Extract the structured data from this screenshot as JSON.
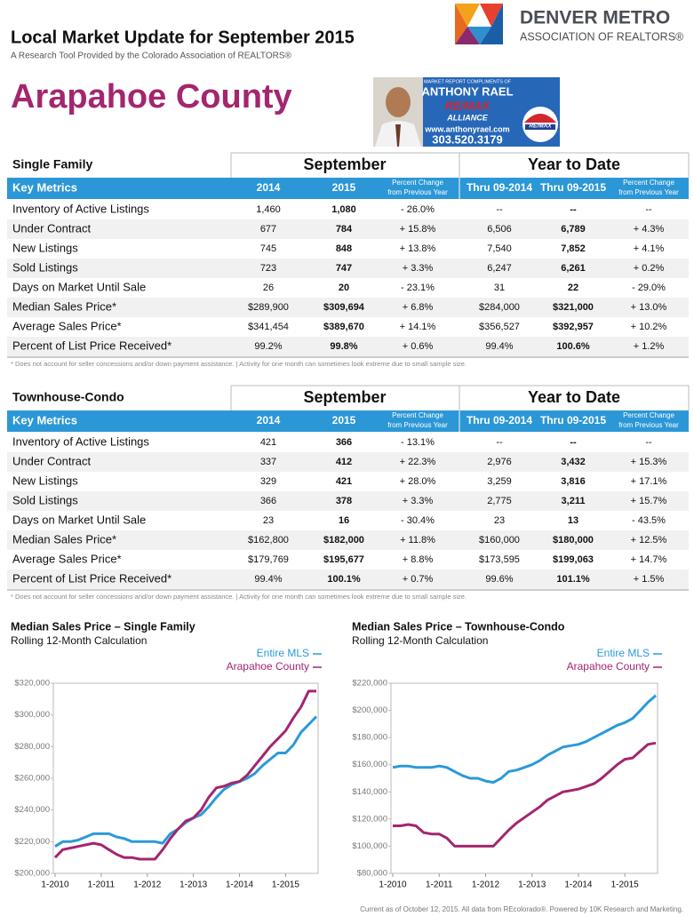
{
  "header": {
    "title": "Local Market Update for September 2015",
    "subtitle": "A Research Tool Provided by the Colorado Association of REALTORS®"
  },
  "logo": {
    "name": "DENVER METRO",
    "tagline": "ASSOCIATION OF REALTORS®"
  },
  "county": "Arapahoe County",
  "ad": {
    "intro": "MARKET REPORT COMPLIMENTS OF",
    "agent": "ANTHONY RAEL",
    "brand": "RE/MAX",
    "office": "ALLIANCE",
    "website": "www.anthonyrael.com",
    "phone": "303.520.3179",
    "balloon": "RE/MAX"
  },
  "tables": [
    {
      "section": "Single Family",
      "groups": [
        "September",
        "Year to Date"
      ],
      "columns": [
        [
          "Key Metrics"
        ],
        [
          "2014"
        ],
        [
          "2015"
        ],
        [
          "Percent Change",
          "from Previous Year"
        ],
        [
          "Thru 09-2014"
        ],
        [
          "Thru 09-2015"
        ],
        [
          "Percent Change",
          "from Previous Year"
        ]
      ],
      "rows": [
        [
          "Inventory of Active Listings",
          "1,460",
          "1,080",
          "- 26.0%",
          "--",
          "--",
          "--"
        ],
        [
          "Under Contract",
          "677",
          "784",
          "+ 15.8%",
          "6,506",
          "6,789",
          "+ 4.3%"
        ],
        [
          "New Listings",
          "745",
          "848",
          "+ 13.8%",
          "7,540",
          "7,852",
          "+ 4.1%"
        ],
        [
          "Sold Listings",
          "723",
          "747",
          "+ 3.3%",
          "6,247",
          "6,261",
          "+ 0.2%"
        ],
        [
          "Days on Market Until Sale",
          "26",
          "20",
          "- 23.1%",
          "31",
          "22",
          "- 29.0%"
        ],
        [
          "Median Sales Price*",
          "$289,900",
          "$309,694",
          "+ 6.8%",
          "$284,000",
          "$321,000",
          "+ 13.0%"
        ],
        [
          "Average Sales Price*",
          "$341,454",
          "$389,670",
          "+ 14.1%",
          "$356,527",
          "$392,957",
          "+ 10.2%"
        ],
        [
          "Percent of List Price Received*",
          "99.2%",
          "99.8%",
          "+ 0.6%",
          "99.4%",
          "100.6%",
          "+ 1.2%"
        ]
      ],
      "footnote": "* Does not account for seller concessions and/or down payment assistance.  |  Activity for one month can sometimes look extreme due to small sample size."
    },
    {
      "section": "Townhouse-Condo",
      "groups": [
        "September",
        "Year to Date"
      ],
      "columns": [
        [
          "Key Metrics"
        ],
        [
          "2014"
        ],
        [
          "2015"
        ],
        [
          "Percent Change",
          "from Previous Year"
        ],
        [
          "Thru 09-2014"
        ],
        [
          "Thru 09-2015"
        ],
        [
          "Percent Change",
          "from Previous Year"
        ]
      ],
      "rows": [
        [
          "Inventory of Active Listings",
          "421",
          "366",
          "- 13.1%",
          "--",
          "--",
          "--"
        ],
        [
          "Under Contract",
          "337",
          "412",
          "+ 22.3%",
          "2,976",
          "3,432",
          "+ 15.3%"
        ],
        [
          "New Listings",
          "329",
          "421",
          "+ 28.0%",
          "3,259",
          "3,816",
          "+ 17.1%"
        ],
        [
          "Sold Listings",
          "366",
          "378",
          "+ 3.3%",
          "2,775",
          "3,211",
          "+ 15.7%"
        ],
        [
          "Days on Market Until Sale",
          "23",
          "16",
          "- 30.4%",
          "23",
          "13",
          "- 43.5%"
        ],
        [
          "Median Sales Price*",
          "$162,800",
          "$182,000",
          "+ 11.8%",
          "$160,000",
          "$180,000",
          "+ 12.5%"
        ],
        [
          "Average Sales Price*",
          "$179,769",
          "$195,677",
          "+ 8.8%",
          "$173,595",
          "$199,063",
          "+ 14.7%"
        ],
        [
          "Percent of List Price Received*",
          "99.4%",
          "100.1%",
          "+ 0.7%",
          "99.6%",
          "101.1%",
          "+ 1.5%"
        ]
      ],
      "footnote": "* Does not account for seller concessions and/or down payment assistance.  |  Activity for one month can sometimes look extreme due to small sample size."
    }
  ],
  "chart_data": [
    {
      "type": "line",
      "title": "Median Sales Price – Single Family",
      "subtitle": "Rolling 12-Month Calculation",
      "categories": [
        "1-2010",
        null,
        null,
        null,
        null,
        null,
        "1-2011",
        null,
        null,
        null,
        null,
        null,
        "1-2012",
        null,
        null,
        null,
        null,
        null,
        "1-2013",
        null,
        null,
        null,
        null,
        null,
        "1-2014",
        null,
        null,
        null,
        null,
        null,
        "1-2015",
        null,
        null,
        null,
        null
      ],
      "series": [
        {
          "name": "Entire MLS",
          "color": "#2a9ad8",
          "values": [
            217000,
            220000,
            220000,
            221000,
            223000,
            225000,
            225000,
            225000,
            223000,
            222000,
            220000,
            220000,
            220000,
            220000,
            219000,
            225000,
            228000,
            232000,
            235000,
            237000,
            242000,
            248000,
            253000,
            256000,
            258000,
            260000,
            263000,
            268000,
            272000,
            276000,
            276000,
            281000,
            289000,
            294000,
            299000
          ]
        },
        {
          "name": "Arapahoe County",
          "color": "#a3266f",
          "values": [
            210000,
            215000,
            216000,
            217000,
            218000,
            219000,
            218000,
            215000,
            212000,
            210000,
            210000,
            209000,
            209000,
            209000,
            215000,
            222000,
            228000,
            233000,
            235000,
            240000,
            248000,
            254000,
            255000,
            257000,
            258000,
            262000,
            268000,
            274000,
            280000,
            285000,
            290000,
            298000,
            305000,
            315000,
            315000
          ]
        }
      ],
      "ylim": [
        200000,
        320000
      ],
      "yticks": [
        {
          "value": 200000,
          "label": "$200,000"
        },
        {
          "value": 220000,
          "label": "$220,000"
        },
        {
          "value": 240000,
          "label": "$240,000"
        },
        {
          "value": 260000,
          "label": "$260,000"
        },
        {
          "value": 280000,
          "label": "$280,000"
        },
        {
          "value": 300000,
          "label": "$300,000"
        },
        {
          "value": 320000,
          "label": "$320,000"
        }
      ],
      "grid": false
    },
    {
      "type": "line",
      "title": "Median Sales Price – Townhouse-Condo",
      "subtitle": "Rolling 12-Month Calculation",
      "categories": [
        "1-2010",
        null,
        null,
        null,
        null,
        null,
        "1-2011",
        null,
        null,
        null,
        null,
        null,
        "1-2012",
        null,
        null,
        null,
        null,
        null,
        "1-2013",
        null,
        null,
        null,
        null,
        null,
        "1-2014",
        null,
        null,
        null,
        null,
        null,
        "1-2015",
        null,
        null,
        null,
        null
      ],
      "series": [
        {
          "name": "Entire MLS",
          "color": "#2a9ad8",
          "values": [
            158000,
            159000,
            159000,
            158000,
            158000,
            158000,
            159000,
            158000,
            155000,
            152000,
            150000,
            150000,
            148000,
            147000,
            150000,
            155000,
            156000,
            158000,
            160000,
            163000,
            167000,
            170000,
            173000,
            174000,
            175000,
            177000,
            180000,
            183000,
            186000,
            189000,
            191000,
            194000,
            200000,
            206000,
            211000
          ]
        },
        {
          "name": "Arapahoe County",
          "color": "#a3266f",
          "values": [
            115000,
            115000,
            116000,
            115000,
            110000,
            109000,
            109000,
            106000,
            100000,
            100000,
            100000,
            100000,
            100000,
            100000,
            106000,
            112000,
            117000,
            121000,
            125000,
            129000,
            134000,
            137000,
            140000,
            141000,
            142000,
            144000,
            146000,
            150000,
            155000,
            160000,
            164000,
            165000,
            170000,
            175000,
            176000
          ]
        }
      ],
      "ylim": [
        80000,
        220000
      ],
      "yticks": [
        {
          "value": 80000,
          "label": "$80,000"
        },
        {
          "value": 100000,
          "label": "$100,000"
        },
        {
          "value": 120000,
          "label": "$120,000"
        },
        {
          "value": 140000,
          "label": "$140,000"
        },
        {
          "value": 160000,
          "label": "$160,000"
        },
        {
          "value": 180000,
          "label": "$180,000"
        },
        {
          "value": 200000,
          "label": "$200,000"
        },
        {
          "value": 220000,
          "label": "$220,000"
        }
      ],
      "grid": false
    }
  ],
  "footer": "Current as of October 12, 2015. All data from REcolorado®. Powered by 10K Research and Marketing."
}
